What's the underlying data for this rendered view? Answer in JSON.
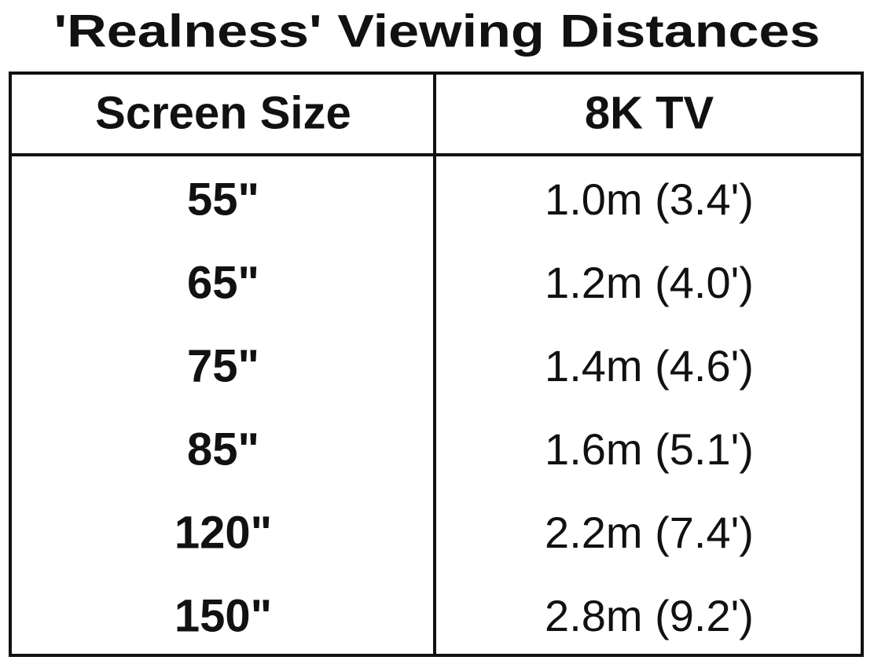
{
  "header": {
    "title": "'Realness' Viewing Distances"
  },
  "table": {
    "columns": [
      "Screen Size",
      "8K TV"
    ],
    "rows": [
      [
        "55\"",
        "1.0m (3.4')"
      ],
      [
        "65\"",
        "1.2m (4.0')"
      ],
      [
        "75\"",
        "1.4m (4.6')"
      ],
      [
        "85\"",
        "1.6m (5.1')"
      ],
      [
        "120\"",
        "2.2m (7.4')"
      ],
      [
        "150\"",
        "2.8m (9.2')"
      ]
    ]
  }
}
